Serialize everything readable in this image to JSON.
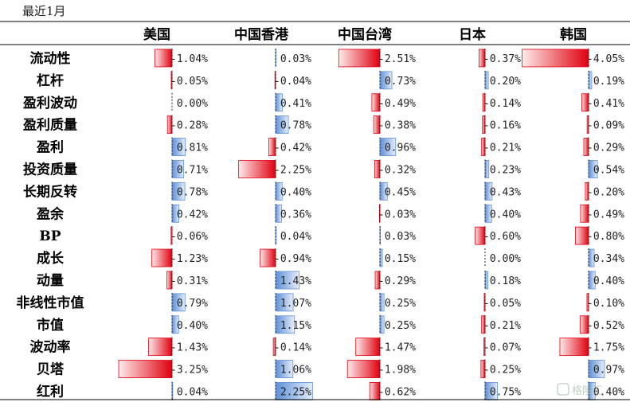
{
  "header": {
    "period_label": "最近1月"
  },
  "chart_data": {
    "type": "table",
    "columns": [
      "美国",
      "中国香港",
      "中国台湾",
      "日本",
      "韩国"
    ],
    "rows": [
      {
        "label": "流动性",
        "values": [
          -1.04,
          0.03,
          -2.51,
          -0.37,
          -4.05
        ]
      },
      {
        "label": "杠杆",
        "values": [
          -0.05,
          -0.04,
          0.73,
          0.2,
          0.19
        ]
      },
      {
        "label": "盈利波动",
        "values": [
          0.0,
          0.41,
          -0.49,
          -0.14,
          -0.41
        ]
      },
      {
        "label": "盈利质量",
        "values": [
          -0.28,
          0.78,
          -0.38,
          -0.16,
          -0.09
        ]
      },
      {
        "label": "盈利",
        "values": [
          0.81,
          -0.42,
          0.96,
          -0.21,
          -0.29
        ]
      },
      {
        "label": "投资质量",
        "values": [
          0.71,
          -2.25,
          -0.32,
          0.23,
          0.54
        ]
      },
      {
        "label": "长期反转",
        "values": [
          0.78,
          0.4,
          0.45,
          0.43,
          -0.2
        ]
      },
      {
        "label": "盈余",
        "values": [
          0.42,
          0.36,
          -0.03,
          0.4,
          -0.49
        ]
      },
      {
        "label": "BP",
        "values": [
          -0.06,
          0.04,
          0.03,
          -0.6,
          -0.8
        ]
      },
      {
        "label": "成长",
        "values": [
          -1.23,
          -0.94,
          0.15,
          0.0,
          0.34
        ]
      },
      {
        "label": "动量",
        "values": [
          -0.31,
          1.43,
          -0.29,
          0.18,
          0.4
        ]
      },
      {
        "label": "非线性市值",
        "values": [
          0.79,
          1.07,
          0.25,
          -0.05,
          -0.1
        ]
      },
      {
        "label": "市值",
        "values": [
          0.4,
          1.15,
          0.25,
          -0.21,
          -0.52
        ]
      },
      {
        "label": "波动率",
        "values": [
          -1.43,
          -0.14,
          -1.47,
          -0.07,
          -1.75
        ]
      },
      {
        "label": "贝塔",
        "values": [
          -3.25,
          1.06,
          -1.98,
          -0.25,
          0.97
        ]
      },
      {
        "label": "红利",
        "values": [
          0.04,
          2.25,
          -0.62,
          0.75,
          0.4
        ]
      }
    ],
    "value_format": "percent",
    "colors": {
      "negative": "#e0000f",
      "negative_fade": "#fdeaea",
      "positive": "#5e8fd6",
      "positive_fade": "#e6eefa"
    }
  },
  "watermark": {
    "text": "格隆汇"
  }
}
